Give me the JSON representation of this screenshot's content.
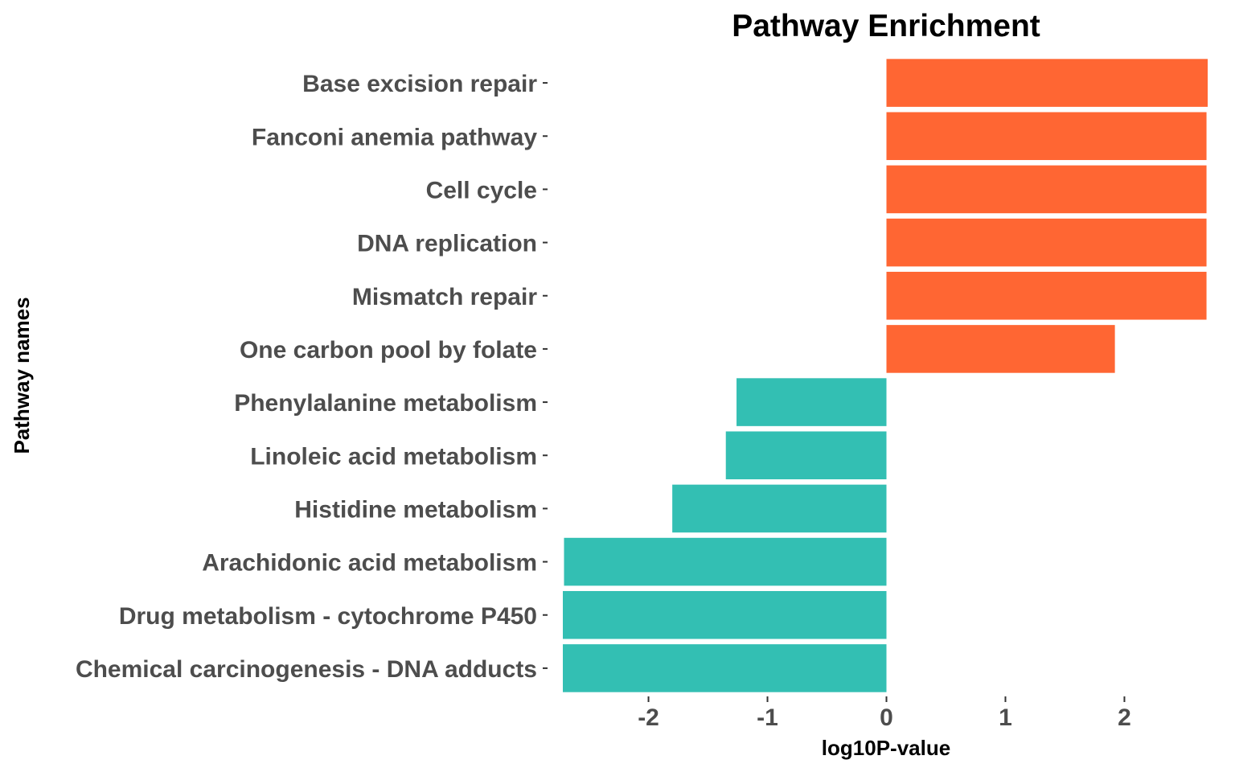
{
  "chart_data": {
    "type": "bar",
    "orientation": "horizontal",
    "title": "Pathway Enrichment",
    "xlabel": "log10P-value",
    "ylabel": "Pathway names",
    "xlim": [
      -2.72,
      2.72
    ],
    "xticks": [
      -2,
      -1,
      0,
      1,
      2
    ],
    "xtick_labels": [
      "-2",
      "-1",
      "0",
      "1",
      "2"
    ],
    "grid": false,
    "legend": "none",
    "colors": {
      "positive": "#ff6633",
      "negative": "#33bfb3"
    },
    "categories": [
      "Base excision repair",
      "Fanconi anemia pathway",
      "Cell cycle",
      "DNA replication",
      "Mismatch repair",
      "One carbon pool by folate",
      "Phenylalanine metabolism",
      "Linoleic acid metabolism",
      "Histidine metabolism",
      "Arachidonic acid metabolism",
      "Drug metabolism - cytochrome P450",
      "Chemical carcinogenesis - DNA adducts"
    ],
    "values": [
      2.7,
      2.69,
      2.69,
      2.69,
      2.69,
      1.92,
      -1.26,
      -1.35,
      -1.8,
      -2.71,
      -2.72,
      -2.72
    ]
  }
}
